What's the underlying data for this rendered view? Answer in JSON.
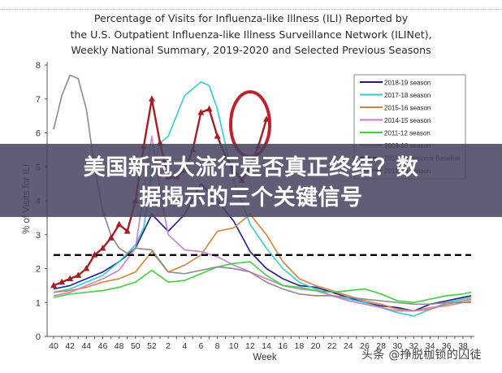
{
  "header": {
    "title_lines": [
      "Percentage of Visits for Influenza-like Illness (ILI) Reported by",
      "the U.S. Outpatient Influenza-like Illness Surveillance Network (ILINet),",
      "Weekly National Summary, 2019-2020 and Selected Previous Seasons"
    ]
  },
  "overlay": {
    "headline_lines": [
      "美国新冠大流行是否真正终结？数",
      "据揭示的三个关键信号"
    ]
  },
  "watermark": "头条 @挣脱枷锁的囚徒",
  "chart_data": {
    "type": "line",
    "title": "Percentage of Visits for Influenza-like Illness (ILI) Reported by the U.S. Outpatient Influenza-like Illness Surveillance Network (ILINet), Weekly National Summary, 2019-2020 and Selected Previous Seasons",
    "xlabel": "Week",
    "ylabel": "% of Visits for ILI",
    "ylim": [
      0,
      8
    ],
    "yticks": [
      "0",
      "1",
      "2",
      "3",
      "4",
      "5",
      "6",
      "7",
      "8"
    ],
    "xticks": [
      "40",
      "42",
      "44",
      "46",
      "48",
      "50",
      "52",
      "2",
      "4",
      "6",
      "8",
      "10",
      "12",
      "14",
      "16",
      "18",
      "20",
      "22",
      "24",
      "26",
      "28",
      "30",
      "32",
      "34",
      "36",
      "38"
    ],
    "x_index_note": "x values are week positions 0..51 counting from week 40 (index 0) to week 38 (index 51)",
    "grid": false,
    "legend_position": "upper right",
    "baseline": {
      "name": "2019-20 National Baseline",
      "value": 2.4,
      "style": "dashed",
      "color": "#000000"
    },
    "annotation": {
      "type": "ellipse",
      "color": "#c0212e",
      "around": "2019-20 season latest weeks (week 10-12)"
    },
    "series": [
      {
        "name": "2018-19 season",
        "color": "#1f1a8a",
        "x": [
          0,
          2,
          4,
          6,
          8,
          10,
          12,
          14,
          16,
          18,
          20,
          22,
          24,
          26,
          28,
          30,
          32,
          34,
          36,
          38,
          40,
          42,
          44,
          46,
          48,
          50,
          51
        ],
        "values": [
          1.4,
          1.5,
          1.7,
          1.9,
          2.2,
          2.6,
          3.6,
          3.1,
          3.6,
          4.5,
          4.0,
          3.4,
          2.5,
          2.0,
          1.7,
          1.5,
          1.45,
          1.3,
          1.15,
          1.0,
          0.9,
          0.85,
          0.75,
          0.95,
          1.05,
          1.15,
          1.2
        ]
      },
      {
        "name": "2017-18 season",
        "color": "#35c9cf",
        "x": [
          0,
          2,
          4,
          6,
          8,
          10,
          11,
          12,
          13,
          14,
          16,
          18,
          19,
          20,
          22,
          24,
          26,
          28,
          30,
          32,
          34,
          36,
          38,
          40,
          42,
          44,
          46,
          48,
          50,
          51
        ],
        "values": [
          1.3,
          1.4,
          1.6,
          1.8,
          2.2,
          2.7,
          3.2,
          4.8,
          5.7,
          5.9,
          7.1,
          7.5,
          7.4,
          6.7,
          4.6,
          3.3,
          2.6,
          2.0,
          1.6,
          1.4,
          1.2,
          1.1,
          1.0,
          0.85,
          0.7,
          0.6,
          0.8,
          1.0,
          1.1,
          1.15
        ]
      },
      {
        "name": "2015-16 season",
        "color": "#d2823c",
        "x": [
          0,
          2,
          4,
          6,
          8,
          10,
          12,
          14,
          16,
          18,
          20,
          22,
          24,
          26,
          28,
          30,
          32,
          34,
          36,
          38,
          40,
          42,
          44,
          46,
          48,
          50,
          51
        ],
        "values": [
          1.3,
          1.35,
          1.45,
          1.6,
          1.7,
          1.9,
          2.5,
          1.9,
          2.1,
          2.4,
          3.1,
          3.2,
          3.6,
          3.0,
          2.2,
          1.7,
          1.5,
          1.35,
          1.2,
          1.05,
          0.95,
          0.8,
          0.75,
          0.8,
          0.95,
          1.05,
          1.1
        ]
      },
      {
        "name": "2014-15 season",
        "color": "#c77ec8",
        "x": [
          0,
          2,
          4,
          6,
          8,
          10,
          12,
          13,
          14,
          16,
          18,
          20,
          22,
          24,
          26,
          28,
          30,
          32,
          34,
          36,
          38,
          40,
          42,
          44,
          46,
          48,
          50,
          51
        ],
        "values": [
          1.2,
          1.3,
          1.5,
          1.7,
          1.95,
          2.6,
          5.9,
          4.3,
          3.0,
          2.55,
          2.5,
          2.35,
          2.1,
          1.9,
          1.7,
          1.5,
          1.4,
          1.35,
          1.2,
          1.05,
          0.95,
          0.85,
          0.75,
          0.75,
          0.85,
          0.9,
          1.0,
          1.05
        ]
      },
      {
        "name": "2011-12 season",
        "color": "#3ecf3e",
        "x": [
          0,
          2,
          4,
          6,
          8,
          10,
          12,
          14,
          16,
          18,
          20,
          22,
          24,
          26,
          28,
          30,
          32,
          34,
          36,
          38,
          40,
          42,
          44,
          46,
          48,
          50,
          51
        ],
        "values": [
          1.15,
          1.25,
          1.3,
          1.35,
          1.45,
          1.6,
          1.95,
          1.6,
          1.65,
          1.85,
          2.05,
          2.15,
          2.2,
          1.8,
          1.5,
          1.45,
          1.35,
          1.3,
          1.35,
          1.4,
          1.25,
          1.05,
          1.0,
          1.1,
          1.2,
          1.25,
          1.3
        ]
      },
      {
        "name": "2009-10 season",
        "color": "#8a8a8a",
        "x": [
          0,
          1,
          2,
          3,
          4,
          5,
          6,
          7,
          8,
          9,
          10,
          12,
          14,
          16,
          18,
          20,
          22,
          24,
          26,
          28,
          30,
          32,
          34,
          36,
          38,
          40,
          42,
          44,
          46,
          48,
          50,
          51
        ],
        "values": [
          6.1,
          7.1,
          7.7,
          7.6,
          6.7,
          5.0,
          3.7,
          3.0,
          2.6,
          2.45,
          2.6,
          2.55,
          1.9,
          1.85,
          1.95,
          2.05,
          2.0,
          1.9,
          1.6,
          1.4,
          1.25,
          1.2,
          1.2,
          1.15,
          1.1,
          1.05,
          1.0,
          0.95,
          0.95,
          1.0,
          1.0,
          1.0
        ]
      },
      {
        "name": "2019-20 season",
        "color": "#a51f24",
        "marker": "triangle",
        "x": [
          0,
          1,
          2,
          3,
          4,
          5,
          6,
          7,
          8,
          9,
          10,
          11,
          12,
          13,
          14,
          15,
          16,
          17,
          18,
          19,
          20,
          21,
          22,
          23,
          24,
          25,
          26
        ],
        "values": [
          1.5,
          1.6,
          1.7,
          1.8,
          2.0,
          2.4,
          2.6,
          2.9,
          3.3,
          3.1,
          4.0,
          5.6,
          7.0,
          5.7,
          4.7,
          4.7,
          4.9,
          5.5,
          6.6,
          6.7,
          5.9,
          5.3,
          4.9,
          4.6,
          5.0,
          5.6,
          6.4
        ]
      }
    ],
    "legend": [
      "2018-19 season",
      "2017-18 season",
      "2015-16 season",
      "2014-15 season",
      "2011-12 season",
      "2009-10 season",
      "2019-20 National Baseline",
      "2019-20 season"
    ]
  }
}
